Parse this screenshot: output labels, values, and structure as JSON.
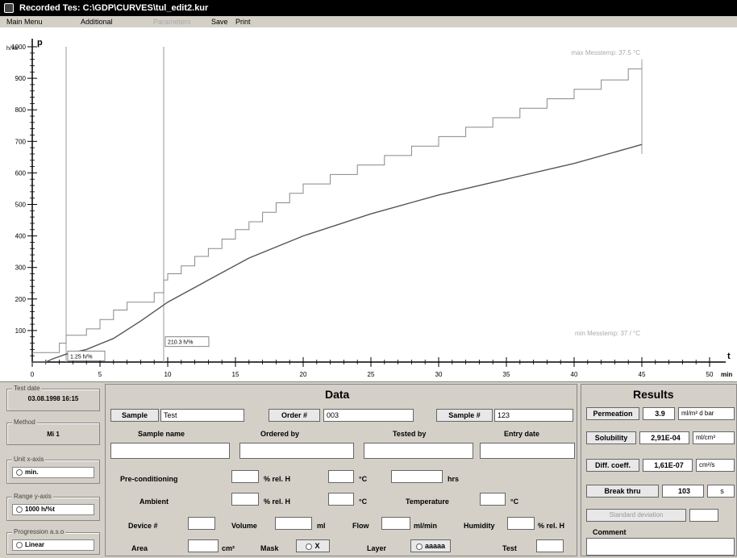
{
  "window": {
    "title": "Recorded Tes: C:\\GDP\\CURVES\\tul_edit2.kur"
  },
  "menu": {
    "main": "Main Menu",
    "additional": "Additional",
    "disabled": "Parameters",
    "save": "Save",
    "print": "Print"
  },
  "colors": {
    "accent": "#000000",
    "curve": "#555555",
    "steps": "#888888"
  },
  "chart_data": {
    "type": "line",
    "xlabel": "t",
    "xunit": "min",
    "ylabel": "p",
    "yunit": "h/%t",
    "ylim": [
      0,
      1000
    ],
    "xlim": [
      0,
      50
    ],
    "yticks": [
      "100",
      "200",
      "300",
      "400",
      "500",
      "600",
      "700",
      "800",
      "900",
      "1000"
    ],
    "xticks": [
      "0",
      "5",
      "10",
      "15",
      "20",
      "25",
      "30",
      "35",
      "40",
      "45",
      "50"
    ],
    "annot_max": "max Messtemp: 37.5 °C",
    "annot_min": "min Messtemp: 37 / °C",
    "marker_label_1": "1.25 h/%",
    "marker_label_2": "210.3 h/%",
    "marker_x1": 2.5,
    "marker_x2": 9.7,
    "end_x": 45,
    "series": [
      {
        "values": [
          [
            0,
            0
          ],
          [
            1,
            0
          ],
          [
            1.5,
            10
          ],
          [
            2.5,
            25
          ],
          [
            4,
            40
          ],
          [
            6,
            75
          ],
          [
            8,
            130
          ],
          [
            10,
            190
          ],
          [
            13,
            260
          ],
          [
            16,
            330
          ],
          [
            20,
            400
          ],
          [
            25,
            470
          ],
          [
            30,
            530
          ],
          [
            35,
            580
          ],
          [
            40,
            630
          ],
          [
            45,
            690
          ]
        ]
      },
      {
        "values": [
          [
            0,
            30
          ],
          [
            2,
            30
          ],
          [
            2,
            60
          ],
          [
            2.5,
            60
          ],
          [
            2.5,
            85
          ],
          [
            4,
            85
          ],
          [
            4,
            105
          ],
          [
            5,
            105
          ],
          [
            5,
            135
          ],
          [
            6,
            135
          ],
          [
            6,
            165
          ],
          [
            7,
            165
          ],
          [
            7,
            190
          ],
          [
            9,
            190
          ],
          [
            9,
            220
          ],
          [
            9.7,
            220
          ],
          [
            9.7,
            260
          ],
          [
            10,
            260
          ],
          [
            10,
            280
          ],
          [
            11,
            280
          ],
          [
            11,
            305
          ],
          [
            12,
            305
          ],
          [
            12,
            335
          ],
          [
            13,
            335
          ],
          [
            13,
            360
          ],
          [
            14,
            360
          ],
          [
            14,
            390
          ],
          [
            15,
            390
          ],
          [
            15,
            420
          ],
          [
            16,
            420
          ],
          [
            16,
            445
          ],
          [
            17,
            445
          ],
          [
            17,
            475
          ],
          [
            18,
            475
          ],
          [
            18,
            505
          ],
          [
            19,
            505
          ],
          [
            19,
            535
          ],
          [
            20,
            535
          ],
          [
            20,
            565
          ],
          [
            22,
            565
          ],
          [
            22,
            595
          ],
          [
            24,
            595
          ],
          [
            24,
            625
          ],
          [
            26,
            625
          ],
          [
            26,
            655
          ],
          [
            28,
            655
          ],
          [
            28,
            685
          ],
          [
            30,
            685
          ],
          [
            30,
            715
          ],
          [
            32,
            715
          ],
          [
            32,
            745
          ],
          [
            34,
            745
          ],
          [
            34,
            775
          ],
          [
            36,
            775
          ],
          [
            36,
            805
          ],
          [
            38,
            805
          ],
          [
            38,
            835
          ],
          [
            40,
            835
          ],
          [
            40,
            865
          ],
          [
            42,
            865
          ],
          [
            42,
            895
          ],
          [
            44,
            895
          ],
          [
            44,
            930
          ],
          [
            45,
            930
          ]
        ]
      }
    ]
  },
  "left": {
    "test_date_label": "Test date",
    "test_date_value": "03.08.1998 16:15",
    "method_label": "Method",
    "method_value": "Mi 1",
    "unit_x_label": "Unit x-axis",
    "unit_x_value": "min.",
    "range_y_label": "Range y-axis",
    "range_y_value": "1000 h/%t",
    "progression_label": "Progression a.s.o",
    "progression_value": "Linear"
  },
  "data": {
    "title": "Data",
    "sample_label": "Sample",
    "sample_value": "Test",
    "order_label": "Order #",
    "order_value": "003",
    "sample_no_label": "Sample #",
    "sample_no_value": "123",
    "col_sample_name": "Sample name",
    "col_ordered_by": "Ordered by",
    "col_tested_by": "Tested by",
    "col_entry_date": "Entry date",
    "precond_label": "Pre-conditioning",
    "pct_rel_h": "% rel. H",
    "deg_c": "°C",
    "hrs": "hrs",
    "ambient_label": "Ambient",
    "temperature_label": "Temperature",
    "device_label": "Device #",
    "volume_label": "Volume",
    "ml": "ml",
    "flow_label": "Flow",
    "ml_min": "ml/min",
    "humidity_label": "Humidity",
    "area_label": "Area",
    "cm2": "cm²",
    "mask_label": "Mask",
    "mask_value": "X",
    "layer_label": "Layer",
    "layer_value": "aaaaa",
    "test_label": "Test"
  },
  "results": {
    "title": "Results",
    "permeation_label": "Permeation",
    "permeation_value": "3.9",
    "permeation_unit": "ml/m² d bar",
    "solubility_label": "Solubility",
    "solubility_value": "2,91E-04",
    "solubility_unit": "ml/cm³",
    "diff_label": "Diff. coeff.",
    "diff_value": "1,61E-07",
    "diff_unit": "cm²/s",
    "breakthrough_label": "Break thru",
    "breakthrough_value": "103",
    "breakthrough_unit": "s",
    "disabled_label": "Standard deviation",
    "comment_label": "Comment"
  }
}
